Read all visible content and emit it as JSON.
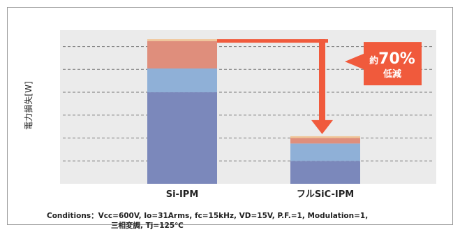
{
  "chart_data": {
    "type": "bar",
    "stacked": true,
    "ylabel": "電力損失[W]",
    "categories": [
      "Si-IPM",
      "フルSiC-IPM"
    ],
    "series": [
      {
        "values": [
          100,
          25
        ],
        "color": "#7b88bb"
      },
      {
        "values": [
          26,
          19
        ],
        "color": "#8fb0d7"
      },
      {
        "values": [
          30,
          6
        ],
        "color": "#df8e7c"
      },
      {
        "values": [
          2,
          2
        ],
        "color": "#f0c79a"
      }
    ],
    "ylim": [
      0,
      168
    ],
    "grid": true,
    "annotation": {
      "prefix": "約",
      "value": "70%",
      "text": "低減",
      "color": "#f05a3c"
    },
    "conditions": {
      "line1": "Conditions：Vcc=600V, Io=31Arms, fc=15kHz, VD=15V, P.F.=1, Modulation=1,",
      "line2": "三相変調, Tj=125℃"
    }
  }
}
